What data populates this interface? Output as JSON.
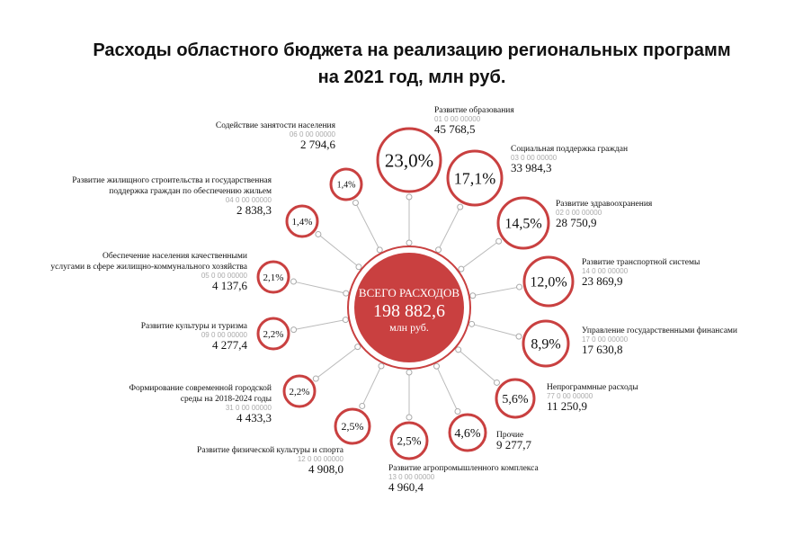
{
  "header": {
    "title": [
      "Расходы областного бюджета на реализацию региональных программ",
      "на 2021 год, млн руб."
    ]
  },
  "total": {
    "label": "ВСЕГО РАСХОДОВ",
    "value": "198 882,6",
    "unit": "млн руб."
  },
  "items": [
    {
      "name": [
        "Развитие образования"
      ],
      "code": "01 0 00 00000",
      "value": "45 768,5",
      "share": "23,0%"
    },
    {
      "name": [
        "Социальная поддержка граждан"
      ],
      "code": "03 0 00 00000",
      "value": "33 984,3",
      "share": "17,1%"
    },
    {
      "name": [
        "Развитие здравоохранения"
      ],
      "code": "02 0 00 00000",
      "value": "28 750,9",
      "share": "14,5%"
    },
    {
      "name": [
        "Развитие транспортной системы"
      ],
      "code": "14 0 00 00000",
      "value": "23 869,9",
      "share": "12,0%"
    },
    {
      "name": [
        "Управление государственными финансами"
      ],
      "code": "17 0 00 00000",
      "value": "17 630,8",
      "share": "8,9%"
    },
    {
      "name": [
        "Непрограммные расходы"
      ],
      "code": "77 0 00 00000",
      "value": "11 250,9",
      "share": "5,6%"
    },
    {
      "name": [
        "Прочие"
      ],
      "value": "9 277,7",
      "share": "4,6%"
    },
    {
      "name": [
        "Развитие агропромышленного комплекса"
      ],
      "code": "13 0 00 00000",
      "value": "4 960,4",
      "share": "2,5%"
    },
    {
      "name": [
        "Развитие физической культуры и спорта"
      ],
      "code": "12 0 00 00000",
      "value": "4  908,0",
      "share": "2,5%"
    },
    {
      "name": [
        "Формирование современной городской",
        "среды на 2018-2024 годы"
      ],
      "code": "31 0 00 00000",
      "value": "4 433,3",
      "share": "2,2%"
    },
    {
      "name": [
        "Развитие культуры и туризма"
      ],
      "code": "09 0 00 00000",
      "value": "4 277,4",
      "share": "2,2%"
    },
    {
      "name": [
        "Обеспечение населения качественными",
        "услугами в сфере жилищно-коммунального хозяйства"
      ],
      "code": "05 0 00 00000",
      "value": "4 137,6",
      "share": "2,1%"
    },
    {
      "name": [
        "Развитие жилищного строительства и государственная",
        "поддержка граждан по обеспечению жильем"
      ],
      "code": "04 0 00 00000",
      "value": "2 838,3",
      "share": "1,4%"
    },
    {
      "name": [
        "Содействие занятости населения"
      ],
      "code": "06 0 00 00000",
      "value": "2 794,6",
      "share": "1,4%"
    }
  ]
}
